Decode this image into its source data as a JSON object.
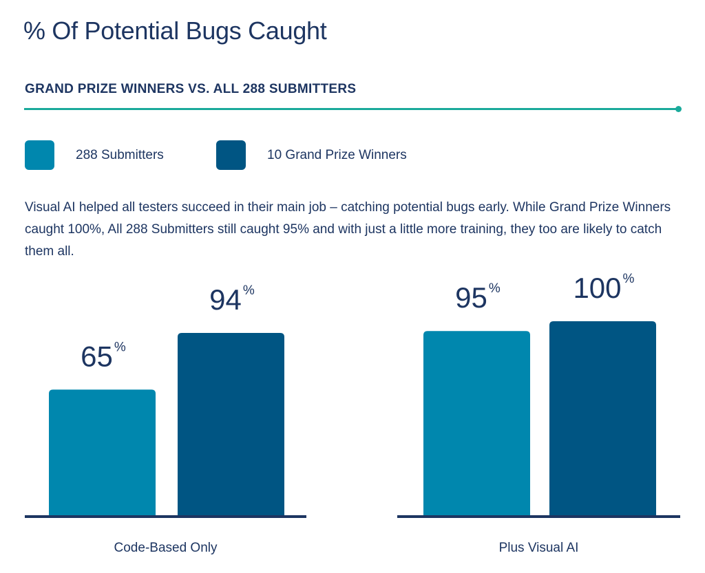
{
  "title": "% Of Potential Bugs Caught",
  "subtitle": "GRAND PRIZE WINNERS VS. ALL 288 SUBMITTERS",
  "description": "Visual AI helped all testers succeed in their main job – catching potential bugs early. While Grand Prize Winners caught 100%, All 288 Submitters still caught 95% and with just a little more training, they too are likely to catch them all.",
  "colors": {
    "accent": "#1aaa9b",
    "series1": "#0087ae",
    "series2": "#005583",
    "text": "#1d3561",
    "axis": "#1d3561"
  },
  "chart_data": {
    "type": "bar",
    "title": "% Of Potential Bugs Caught",
    "categories": [
      "Code-Based Only",
      "Plus Visual AI"
    ],
    "series": [
      {
        "name": "288 Submitters",
        "values": [
          65,
          95
        ]
      },
      {
        "name": "10 Grand Prize Winners",
        "values": [
          94,
          100
        ]
      }
    ],
    "unit": "%",
    "ylim": [
      0,
      100
    ],
    "legend": "top-left",
    "grid": false
  }
}
